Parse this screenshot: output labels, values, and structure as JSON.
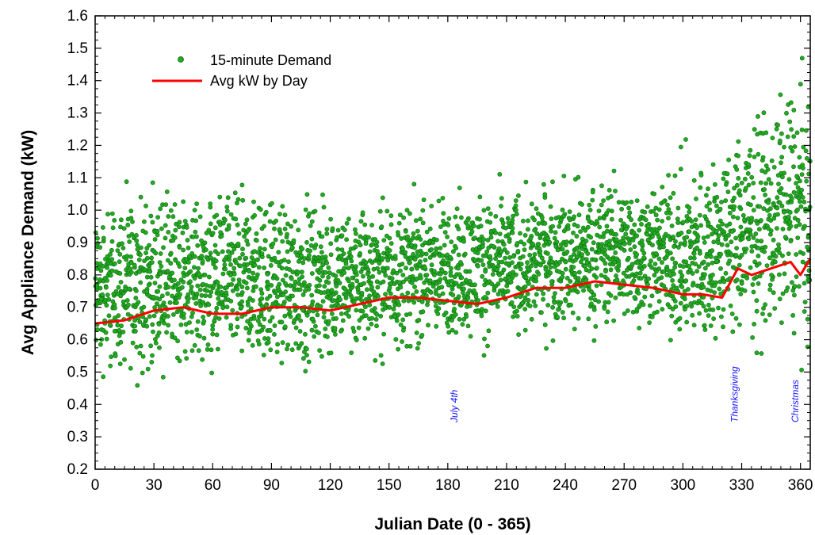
{
  "chart_data": {
    "type": "scatter",
    "xlabel": "Julian Date (0 - 365)",
    "ylabel": "Avg Appliance Demand (kW)",
    "xlim": [
      0,
      365
    ],
    "ylim": [
      0.2,
      1.6
    ],
    "xticks": [
      0,
      30,
      60,
      90,
      120,
      150,
      180,
      210,
      240,
      270,
      300,
      330,
      360
    ],
    "yticks": [
      0.2,
      0.3,
      0.4,
      0.5,
      0.6,
      0.7,
      0.8,
      0.9,
      1.0,
      1.1,
      1.2,
      1.3,
      1.4,
      1.5,
      1.6
    ],
    "ytick_labels": [
      "0.2",
      "0.3",
      "0.4",
      "0.5",
      "0.6",
      "0.7",
      "0.8",
      "0.9",
      "1.0",
      "1.1",
      "1.2",
      "1.3",
      "1.4",
      "1.5",
      "1.6"
    ],
    "grid": false,
    "legend_position": "top-left",
    "legend": [
      {
        "label": "15-minute Demand",
        "marker": "dot",
        "color": "#22aa22"
      },
      {
        "label": "Avg kW by Day",
        "marker": "line",
        "color": "#ff0000"
      }
    ],
    "series": [
      {
        "name": "15-minute Demand",
        "kind": "scatter",
        "color": "#22aa22",
        "envelope": {
          "x": [
            0,
            30,
            60,
            90,
            120,
            150,
            180,
            210,
            240,
            270,
            290,
            300,
            315,
            330,
            345,
            360,
            365
          ],
          "lower": [
            0.4,
            0.43,
            0.43,
            0.43,
            0.45,
            0.5,
            0.52,
            0.53,
            0.55,
            0.56,
            0.55,
            0.46,
            0.48,
            0.5,
            0.5,
            0.48,
            0.46
          ],
          "upper": [
            1.1,
            1.13,
            1.14,
            1.13,
            1.1,
            1.1,
            1.11,
            1.13,
            1.16,
            1.18,
            1.17,
            1.25,
            1.25,
            1.35,
            1.45,
            1.55,
            1.3
          ]
        }
      },
      {
        "name": "Avg kW by Day",
        "kind": "line",
        "color": "#ff0000",
        "x": [
          0,
          15,
          30,
          45,
          60,
          75,
          90,
          105,
          120,
          135,
          150,
          165,
          180,
          195,
          210,
          225,
          240,
          255,
          270,
          285,
          300,
          310,
          320,
          328,
          335,
          345,
          355,
          360,
          365
        ],
        "y": [
          0.65,
          0.66,
          0.69,
          0.7,
          0.68,
          0.68,
          0.7,
          0.7,
          0.69,
          0.71,
          0.73,
          0.73,
          0.72,
          0.71,
          0.73,
          0.76,
          0.76,
          0.78,
          0.77,
          0.76,
          0.74,
          0.74,
          0.73,
          0.82,
          0.8,
          0.82,
          0.84,
          0.8,
          0.85
        ]
      }
    ],
    "annotations": [
      {
        "text": "July 4th",
        "x": 185
      },
      {
        "text": "Thanksgiving",
        "x": 328
      },
      {
        "text": "Christmas",
        "x": 359
      }
    ]
  }
}
